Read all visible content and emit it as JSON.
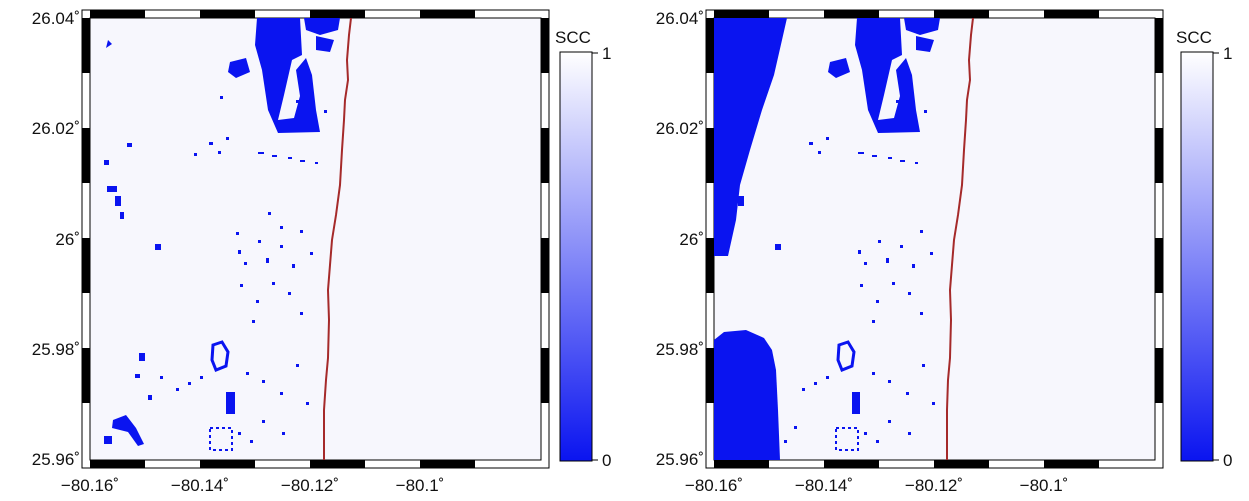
{
  "panels": [
    {
      "id": "left",
      "y_ticks": [
        "26.04˚",
        "26.02˚",
        "26˚",
        "25.98˚",
        "25.96˚"
      ],
      "x_ticks": [
        "−80.16˚",
        "−80.14˚",
        "−80.12˚",
        "−80.1˚"
      ],
      "colorbar": {
        "title": "SCC",
        "max_label": "1",
        "min_label": "0"
      },
      "large_low_regions": false
    },
    {
      "id": "right",
      "y_ticks": [
        "26.04˚",
        "26.02˚",
        "26˚",
        "25.98˚",
        "25.96˚"
      ],
      "x_ticks": [
        "−80.16˚",
        "−80.14˚",
        "−80.12˚",
        "−80.1˚"
      ],
      "colorbar": {
        "title": "SCC",
        "max_label": "1",
        "min_label": "0"
      },
      "large_low_regions": true
    }
  ],
  "colors": {
    "background_high": "#f7f7fd",
    "low": "#0a14f0",
    "coastline": "#a52a2a",
    "frame": "#000000"
  }
}
